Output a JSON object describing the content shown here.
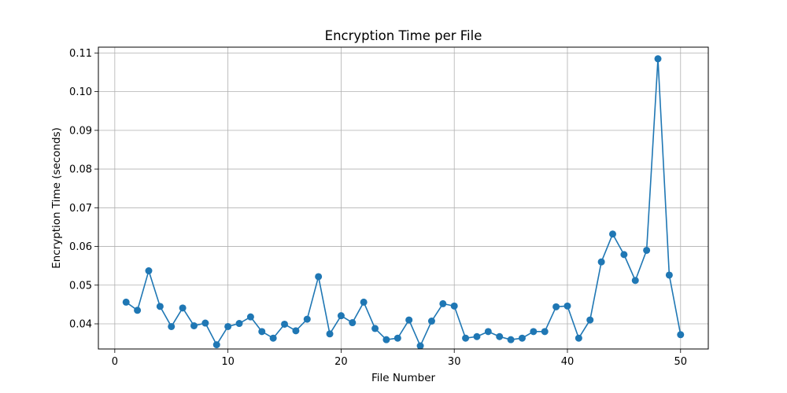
{
  "chart_data": {
    "type": "line",
    "title": "Encryption Time per File",
    "xlabel": "File Number",
    "ylabel": "Encryption Time (seconds)",
    "xlim": [
      -1.45,
      52.45
    ],
    "ylim": [
      0.0335,
      0.1115
    ],
    "x_ticks": [
      0,
      10,
      20,
      30,
      40,
      50
    ],
    "y_ticks": [
      0.04,
      0.05,
      0.06,
      0.07,
      0.08,
      0.09,
      0.1,
      0.11
    ],
    "x_tick_labels": [
      "0",
      "10",
      "20",
      "30",
      "40",
      "50"
    ],
    "y_tick_labels": [
      "0.04",
      "0.05",
      "0.06",
      "0.07",
      "0.08",
      "0.09",
      "0.10",
      "0.11"
    ],
    "grid": true,
    "marker": "circle",
    "color": "#1f77b4",
    "series": [
      {
        "x": [
          1,
          2,
          3,
          4,
          5,
          6,
          7,
          8,
          9,
          10,
          11,
          12,
          13,
          14,
          15,
          16,
          17,
          18,
          19,
          20,
          21,
          22,
          23,
          24,
          25,
          26,
          27,
          28,
          29,
          30,
          31,
          32,
          33,
          34,
          35,
          36,
          37,
          38,
          39,
          40,
          41,
          42,
          43,
          44,
          45,
          46,
          47,
          48,
          49,
          50
        ],
        "values": [
          0.0456,
          0.0435,
          0.0537,
          0.0445,
          0.0393,
          0.0441,
          0.0395,
          0.0402,
          0.0346,
          0.0393,
          0.0401,
          0.0418,
          0.038,
          0.0363,
          0.0399,
          0.0382,
          0.0412,
          0.0522,
          0.0374,
          0.0421,
          0.0403,
          0.0456,
          0.0388,
          0.0359,
          0.0363,
          0.041,
          0.0343,
          0.0407,
          0.0452,
          0.0446,
          0.0363,
          0.0367,
          0.038,
          0.0367,
          0.0359,
          0.0363,
          0.038,
          0.038,
          0.0444,
          0.0446,
          0.0363,
          0.041,
          0.056,
          0.0632,
          0.0579,
          0.0512,
          0.059,
          0.1085,
          0.0526,
          0.0372
        ]
      }
    ]
  }
}
